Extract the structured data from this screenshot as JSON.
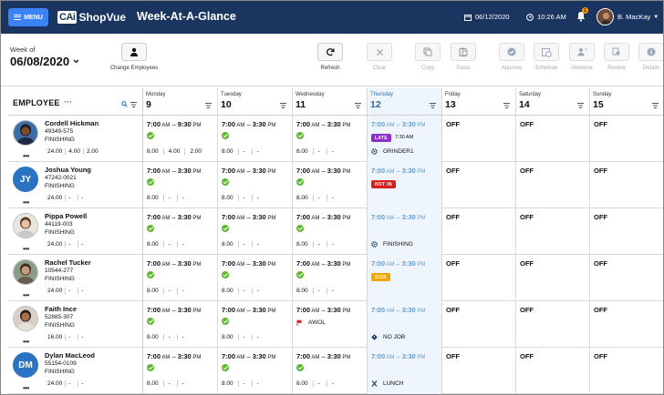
{
  "topbar": {
    "menu_label": "MENU",
    "logo_mark": "CAi",
    "logo_text": "ShopVue",
    "page_title": "Week-At-A-Glance",
    "date": "06/12/2020",
    "time": "10:26 AM",
    "notification_count": "1",
    "user_name": "B. MacKay",
    "brand_color": "#1a3660",
    "accent_color": "#3b82f6"
  },
  "toolbar": {
    "week_of_label": "Week of",
    "week_date": "06/08/2020",
    "change_employees_label": "Change Employees",
    "actions": {
      "refresh": "Refresh",
      "clear": "Clear",
      "copy": "Copy",
      "paste": "Paste",
      "approve": "Approve",
      "schedule": "Schedule",
      "absence": "Absence",
      "review": "Review",
      "details": "Details"
    }
  },
  "grid": {
    "employee_header": "EMPLOYEE",
    "employee_menu": "···",
    "days": [
      {
        "name": "Monday",
        "date": "9"
      },
      {
        "name": "Tuesday",
        "date": "10"
      },
      {
        "name": "Wednesday",
        "date": "11"
      },
      {
        "name": "Thursday",
        "date": "12"
      },
      {
        "name": "Friday",
        "date": "13"
      },
      {
        "name": "Saturday",
        "date": "14"
      },
      {
        "name": "Sunday",
        "date": "15"
      }
    ],
    "off_label": "OFF",
    "employees": [
      {
        "name": "Cordell Hickman",
        "id": "49349-575",
        "dept": "FINISHING",
        "avatar": "photo",
        "initials": "",
        "hours": [
          "24.00",
          "4.00",
          "2.00"
        ],
        "mon": {
          "start": "7:00",
          "start_ap": "AM",
          "end": "9:30",
          "end_ap": "PM",
          "hours": [
            "8.00",
            "4.00",
            "2.00"
          ]
        },
        "tue": {
          "start": "7:00",
          "start_ap": "AM",
          "end": "3:30",
          "end_ap": "PM",
          "hours": [
            "8.00",
            "-",
            "-"
          ]
        },
        "wed": {
          "start": "7:00",
          "start_ap": "AM",
          "end": "3:30",
          "end_ap": "PM",
          "hours": [
            "8.00",
            "-",
            "-"
          ]
        },
        "thu": {
          "start": "7:00",
          "start_ap": "AM",
          "end": "3:30",
          "end_ap": "PM",
          "badge": "LATE",
          "badge_time": "7:30 AM",
          "tag": "GRINDER1"
        }
      },
      {
        "name": "Joshua Young",
        "id": "47242-0021",
        "dept": "FINISHING",
        "avatar": "initials",
        "initials": "JY",
        "hours": [
          "24.00",
          "-",
          "-"
        ],
        "mon": {
          "start": "7:00",
          "start_ap": "AM",
          "end": "3:30",
          "end_ap": "PM",
          "hours": [
            "8.00",
            "-",
            "-"
          ]
        },
        "tue": {
          "start": "7:00",
          "start_ap": "AM",
          "end": "3:30",
          "end_ap": "PM",
          "hours": [
            "8.00",
            "-",
            "-"
          ]
        },
        "wed": {
          "start": "7:00",
          "start_ap": "AM",
          "end": "3:30",
          "end_ap": "PM",
          "hours": [
            "8.00",
            "-",
            "-"
          ]
        },
        "thu": {
          "start": "7:00",
          "start_ap": "AM",
          "end": "3:30",
          "end_ap": "PM",
          "badge": "NOT IN"
        }
      },
      {
        "name": "Pippa Powell",
        "id": "44119-003",
        "dept": "FINISHING",
        "avatar": "photo",
        "initials": "",
        "hours": [
          "24.00",
          "-",
          "-"
        ],
        "mon": {
          "start": "7:00",
          "start_ap": "AM",
          "end": "3:30",
          "end_ap": "PM",
          "hours": [
            "8.00",
            "-",
            "-"
          ]
        },
        "tue": {
          "start": "7:00",
          "start_ap": "AM",
          "end": "3:30",
          "end_ap": "PM",
          "hours": [
            "8.00",
            "-",
            "-"
          ]
        },
        "wed": {
          "start": "7:00",
          "start_ap": "AM",
          "end": "3:30",
          "end_ap": "PM",
          "hours": [
            "8.00",
            "-",
            "-"
          ]
        },
        "thu": {
          "start": "7:00",
          "start_ap": "AM",
          "end": "3:30",
          "end_ap": "PM",
          "tag": "FINISHING"
        }
      },
      {
        "name": "Rachel Tucker",
        "id": "10544-277",
        "dept": "FINISHING",
        "avatar": "photo",
        "initials": "",
        "hours": [
          "24.00",
          "-",
          "-"
        ],
        "mon": {
          "start": "7:00",
          "start_ap": "AM",
          "end": "3:30",
          "end_ap": "PM",
          "hours": [
            "8.00",
            "-",
            "-"
          ]
        },
        "tue": {
          "start": "7:00",
          "start_ap": "AM",
          "end": "3:30",
          "end_ap": "PM",
          "hours": [
            "8.00",
            "-",
            "-"
          ]
        },
        "wed": {
          "start": "7:00",
          "start_ap": "AM",
          "end": "3:30",
          "end_ap": "PM",
          "hours": [
            "8.00",
            "-",
            "-"
          ]
        },
        "thu": {
          "start": "7:00",
          "start_ap": "AM",
          "end": "3:30",
          "end_ap": "PM",
          "badge": "SICK"
        }
      },
      {
        "name": "Faith Ince",
        "id": "52885-307",
        "dept": "FINISHING",
        "avatar": "photo",
        "initials": "",
        "hours": [
          "16.00",
          "-",
          "-"
        ],
        "mon": {
          "start": "7:00",
          "start_ap": "AM",
          "end": "3:30",
          "end_ap": "PM",
          "hours": [
            "8.00",
            "-",
            "-"
          ]
        },
        "tue": {
          "start": "7:00",
          "start_ap": "AM",
          "end": "3:30",
          "end_ap": "PM",
          "hours": [
            "8.00",
            "-",
            "-"
          ]
        },
        "wed": {
          "start": "7:00",
          "start_ap": "AM",
          "end": "3:30",
          "end_ap": "PM",
          "tag": "AWOL"
        },
        "thu": {
          "start": "7:00",
          "start_ap": "AM",
          "end": "3:30",
          "end_ap": "PM",
          "tag": "NO JOB"
        }
      },
      {
        "name": "Dylan MacLeod",
        "id": "55154-0109",
        "dept": "FINISHING",
        "avatar": "initials",
        "initials": "DM",
        "hours": [
          "24.00",
          "-",
          "-"
        ],
        "mon": {
          "start": "7:00",
          "start_ap": "AM",
          "end": "3:30",
          "end_ap": "PM",
          "hours": [
            "8.00",
            "-",
            "-"
          ]
        },
        "tue": {
          "start": "7:00",
          "start_ap": "AM",
          "end": "3:30",
          "end_ap": "PM",
          "hours": [
            "8.00",
            "-",
            "-"
          ]
        },
        "wed": {
          "start": "7:00",
          "start_ap": "AM",
          "end": "3:30",
          "end_ap": "PM",
          "hours": [
            "8.00",
            "-",
            "-"
          ]
        },
        "thu": {
          "start": "7:00",
          "start_ap": "AM",
          "end": "3:30",
          "end_ap": "PM",
          "tag": "LUNCH"
        }
      }
    ],
    "status_colors": {
      "late": "#8b2fc9",
      "not_in": "#d61f1f",
      "sick": "#f0a500",
      "today_bg": "#eef5fc",
      "approved": "#5cb82f"
    }
  }
}
